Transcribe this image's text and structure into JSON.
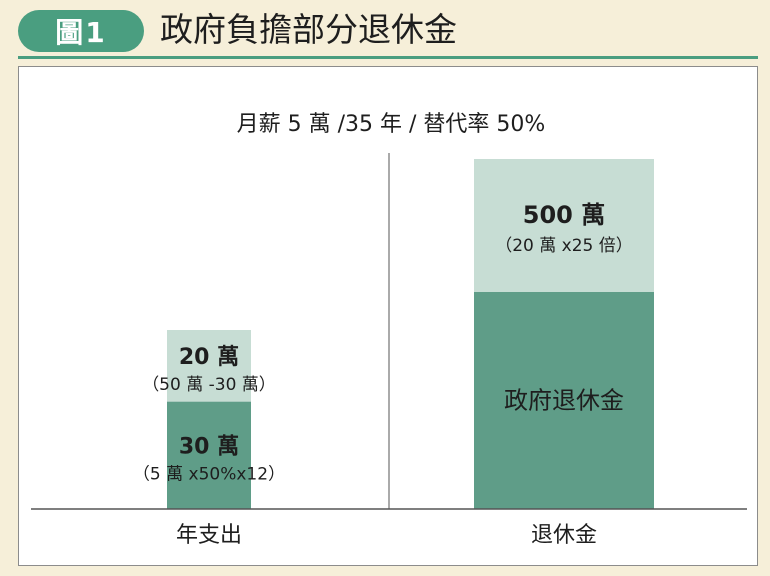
{
  "header": {
    "badge": "圖1",
    "title": "政府負擔部分退休金"
  },
  "chart_data": {
    "type": "bar",
    "title": "月薪 5 萬 /35 年 / 替代率 50%",
    "categories": [
      "年支出",
      "退休金"
    ],
    "unit": "萬",
    "stacked": true,
    "ylim": [
      0,
      500
    ],
    "bars": [
      {
        "category": "年支出",
        "segments": [
          {
            "value": 30,
            "label": "30 萬",
            "sublabel": "（5 萬 x50%x12）",
            "color": "#5f9d88"
          },
          {
            "value": 20,
            "label": "20 萬",
            "sublabel": "（50 萬 -30 萬）",
            "color": "#c7ddd4"
          }
        ]
      },
      {
        "category": "退休金",
        "segments": [
          {
            "value": 310,
            "label": "政府退休金",
            "sublabel": "",
            "color": "#5f9d88"
          },
          {
            "value": 190,
            "label": "",
            "sublabel": "",
            "color": "#c7ddd4"
          }
        ],
        "total_label": "500 萬",
        "total_sublabel": "（20 萬 x25 倍）"
      }
    ],
    "colors": {
      "base": "#5f9d88",
      "top": "#c7ddd4",
      "axis": "#555555",
      "text": "#1e1e1e"
    }
  }
}
